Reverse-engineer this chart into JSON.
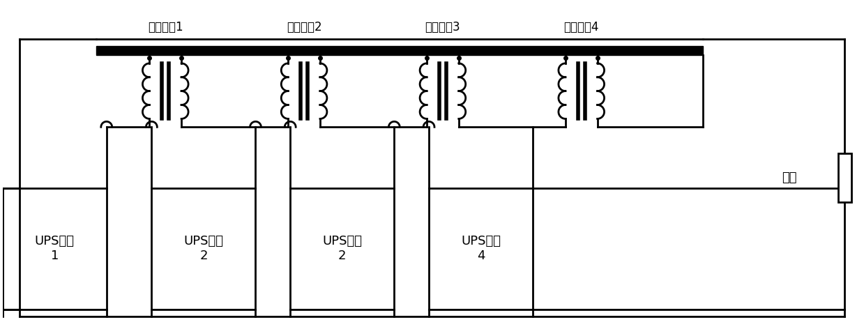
{
  "bg_color": "#ffffff",
  "line_color": "#000000",
  "labels_inductor": [
    "耦合电感1",
    "耦合电感2",
    "耦合电感3",
    "耦合电感4"
  ],
  "labels_ups": [
    "UPS模块\n1",
    "UPS模块\n2",
    "UPS模块\n2",
    "UPS模块\n4"
  ],
  "label_load": "负载",
  "figsize": [
    12.39,
    4.72
  ],
  "dpi": 100
}
